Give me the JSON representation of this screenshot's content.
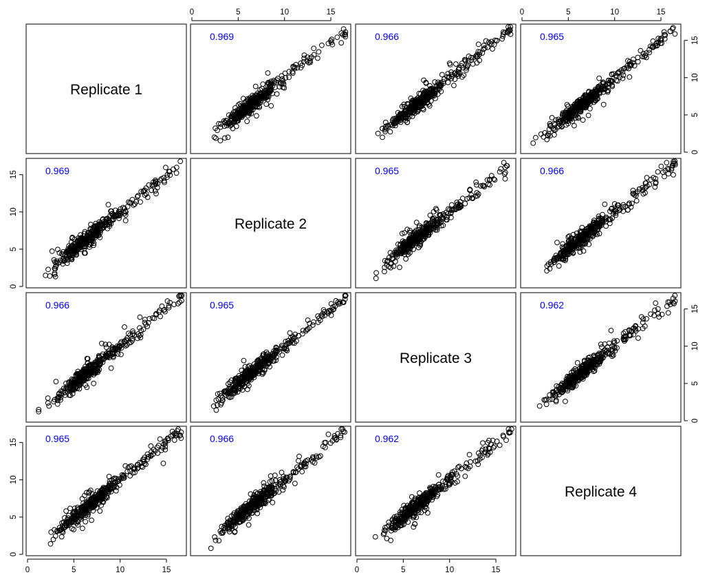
{
  "chart_data": {
    "type": "scatter-matrix",
    "variables": [
      "Replicate 1",
      "Replicate 2",
      "Replicate 3",
      "Replicate 4"
    ],
    "axis_range": [
      0,
      17
    ],
    "axis_ticks": [
      0,
      5,
      10,
      15
    ],
    "correlations": [
      {
        "row": 1,
        "col": 2,
        "value": "0.969"
      },
      {
        "row": 1,
        "col": 3,
        "value": "0.966"
      },
      {
        "row": 1,
        "col": 4,
        "value": "0.965"
      },
      {
        "row": 2,
        "col": 1,
        "value": "0.969"
      },
      {
        "row": 2,
        "col": 3,
        "value": "0.965"
      },
      {
        "row": 2,
        "col": 4,
        "value": "0.966"
      },
      {
        "row": 3,
        "col": 1,
        "value": "0.966"
      },
      {
        "row": 3,
        "col": 2,
        "value": "0.965"
      },
      {
        "row": 3,
        "col": 4,
        "value": "0.962"
      },
      {
        "row": 4,
        "col": 1,
        "value": "0.965"
      },
      {
        "row": 4,
        "col": 2,
        "value": "0.966"
      },
      {
        "row": 4,
        "col": 3,
        "value": "0.962"
      }
    ],
    "marker": "open-circle",
    "correlation_color": "#0000ff",
    "point_color": "#000000"
  }
}
